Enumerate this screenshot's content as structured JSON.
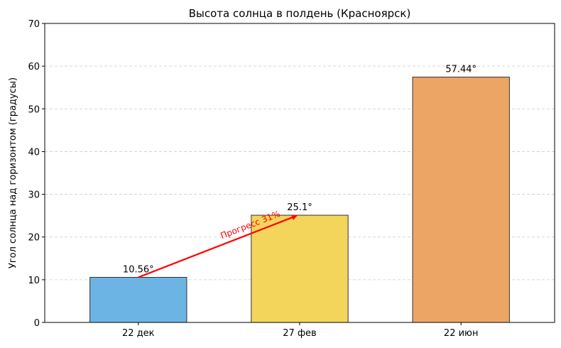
{
  "chart_data": {
    "type": "bar",
    "title": "Высота солнца в полдень (Красноярск)",
    "xlabel": "",
    "ylabel": "Угол солнца над горизонтом (градусы)",
    "categories": [
      "22 дек",
      "27 фев",
      "22 июн"
    ],
    "values": [
      10.56,
      25.1,
      57.44
    ],
    "value_labels": [
      "10.56°",
      "25.1°",
      "57.44°"
    ],
    "colors": [
      "#6cb4e4",
      "#f3d55b",
      "#eda566"
    ],
    "edge_color": "#333333",
    "ylim": [
      0,
      70
    ],
    "yticks": [
      0,
      10,
      20,
      30,
      40,
      50,
      60,
      70
    ],
    "grid": {
      "axis": "y",
      "style": "dashed",
      "color": "#cccccc"
    },
    "legend": null,
    "annotations": [
      {
        "type": "arrow",
        "text": "Прогресс 31%",
        "from": {
          "category": "22 дек",
          "value": 10.56
        },
        "to": {
          "category": "27 фев",
          "value": 25.1
        },
        "color": "#ff0000"
      }
    ]
  }
}
